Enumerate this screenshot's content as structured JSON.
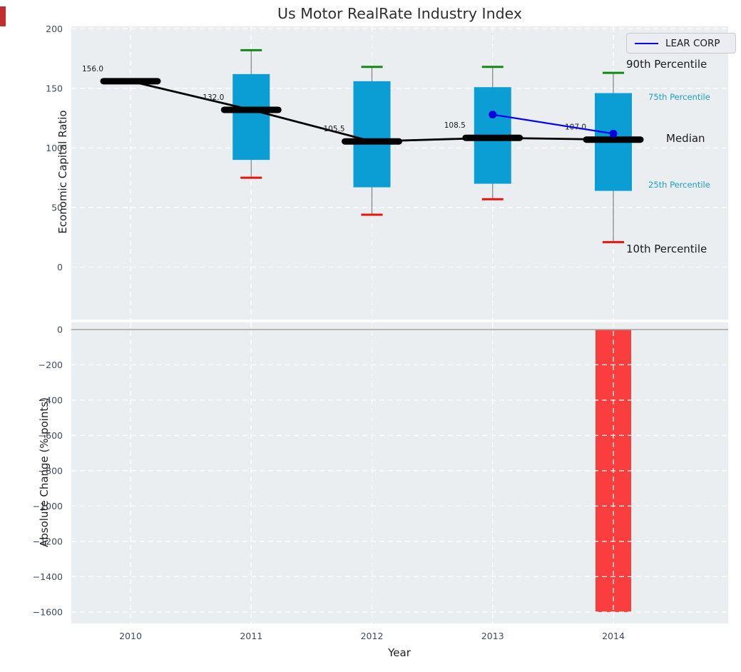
{
  "title": "Us Motor RealRate Industry Index",
  "legend": {
    "label": "LEAR CORP"
  },
  "annotations": {
    "p90": "90th Percentile",
    "p75": "75th Percentile",
    "median": "Median",
    "p25": "25th Percentile",
    "p10": "10th Percentile"
  },
  "colors": {
    "box_fill": "#0b9ed4",
    "whisker": "#808080",
    "cap_green": "#128a12",
    "cap_red": "#e8130c",
    "median_line": "#000000",
    "lear_blue": "#0404f0",
    "lear_dot": "#0000dd",
    "bar_red": "#fa3d3d",
    "axes_bg": "#eaeef0",
    "grid": "#ffffff",
    "tick_text": "#3d4a5e",
    "zero_line": "#a8a8a8",
    "cyan_label": "#1b9fcb"
  },
  "chart_data": [
    {
      "type": "boxplot",
      "title": "Us Motor RealRate Industry Index",
      "categories": [
        "2010",
        "2011",
        "2012",
        "2013",
        "2014"
      ],
      "ylabel": "Economic Capital Ratio",
      "yticks": [
        0,
        50,
        100,
        150,
        200
      ],
      "ytick_labels": [
        "0",
        "50",
        "100",
        "150",
        "200"
      ],
      "ylim": [
        -44,
        202
      ],
      "grid": true,
      "legend_position": "upper right",
      "medians": [
        156.0,
        132.0,
        105.5,
        108.5,
        107.0
      ],
      "median_labels": [
        "156.0",
        "132.0",
        "105.5",
        "108.5",
        "107.0"
      ],
      "p90": [
        null,
        182,
        168,
        168,
        163
      ],
      "p75": [
        null,
        162,
        156,
        151,
        146
      ],
      "p25": [
        null,
        90,
        67,
        70,
        64
      ],
      "p10": [
        null,
        75,
        44,
        57,
        21
      ],
      "series": [
        {
          "name": "LEAR CORP",
          "values": [
            null,
            null,
            null,
            128,
            112
          ]
        }
      ]
    },
    {
      "type": "bar",
      "categories": [
        "2010",
        "2011",
        "2012",
        "2013",
        "2014"
      ],
      "values": [
        0,
        0,
        0,
        0,
        -1600
      ],
      "xlabel": "Year",
      "ylabel": "Absolute Change (%-points)",
      "yticks": [
        0,
        -200,
        -400,
        -600,
        -800,
        -1000,
        -1200,
        -1400,
        -1600
      ],
      "ytick_labels": [
        "0",
        "−200",
        "−400",
        "−600",
        "−800",
        "−1000",
        "−1200",
        "−1400",
        "−1600"
      ],
      "ylim": [
        -1665,
        40
      ],
      "grid": true
    }
  ]
}
